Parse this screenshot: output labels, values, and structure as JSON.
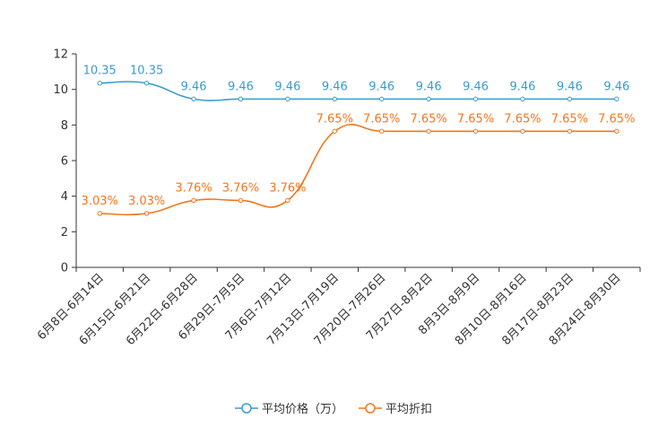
{
  "chart_data": {
    "type": "line",
    "categories": [
      "6月8日-6月14日",
      "6月15日-6月21日",
      "6月22日-6月28日",
      "6月29日-7月5日",
      "7月6日-7月12日",
      "7月13日-7月19日",
      "7月20日-7月26日",
      "7月27日-8月2日",
      "8月3日-8月9日",
      "8月10日-8月16日",
      "8月17日-8月23日",
      "8月24日-8月30日"
    ],
    "series": [
      {
        "name": "平均价格（万）",
        "color": "#3a9ccc",
        "values": [
          10.35,
          10.35,
          9.46,
          9.46,
          9.46,
          9.46,
          9.46,
          9.46,
          9.46,
          9.46,
          9.46,
          9.46
        ],
        "labels": [
          "10.35",
          "10.35",
          "9.46",
          "9.46",
          "9.46",
          "9.46",
          "9.46",
          "9.46",
          "9.46",
          "9.46",
          "9.46",
          "9.46"
        ]
      },
      {
        "name": "平均折扣",
        "color": "#f07820",
        "values": [
          3.03,
          3.03,
          3.76,
          3.76,
          3.76,
          7.65,
          7.65,
          7.65,
          7.65,
          7.65,
          7.65,
          7.65
        ],
        "labels": [
          "3.03%",
          "3.03%",
          "3.76%",
          "3.76%",
          "3.76%",
          "7.65%",
          "7.65%",
          "7.65%",
          "7.65%",
          "7.65%",
          "7.65%",
          "7.65%"
        ]
      }
    ],
    "yticks": [
      "0",
      "2",
      "4",
      "6",
      "8",
      "10",
      "12"
    ],
    "ylim": [
      0,
      12
    ],
    "title": "",
    "xlabel": "",
    "ylabel": "",
    "legend_position": "bottom"
  }
}
